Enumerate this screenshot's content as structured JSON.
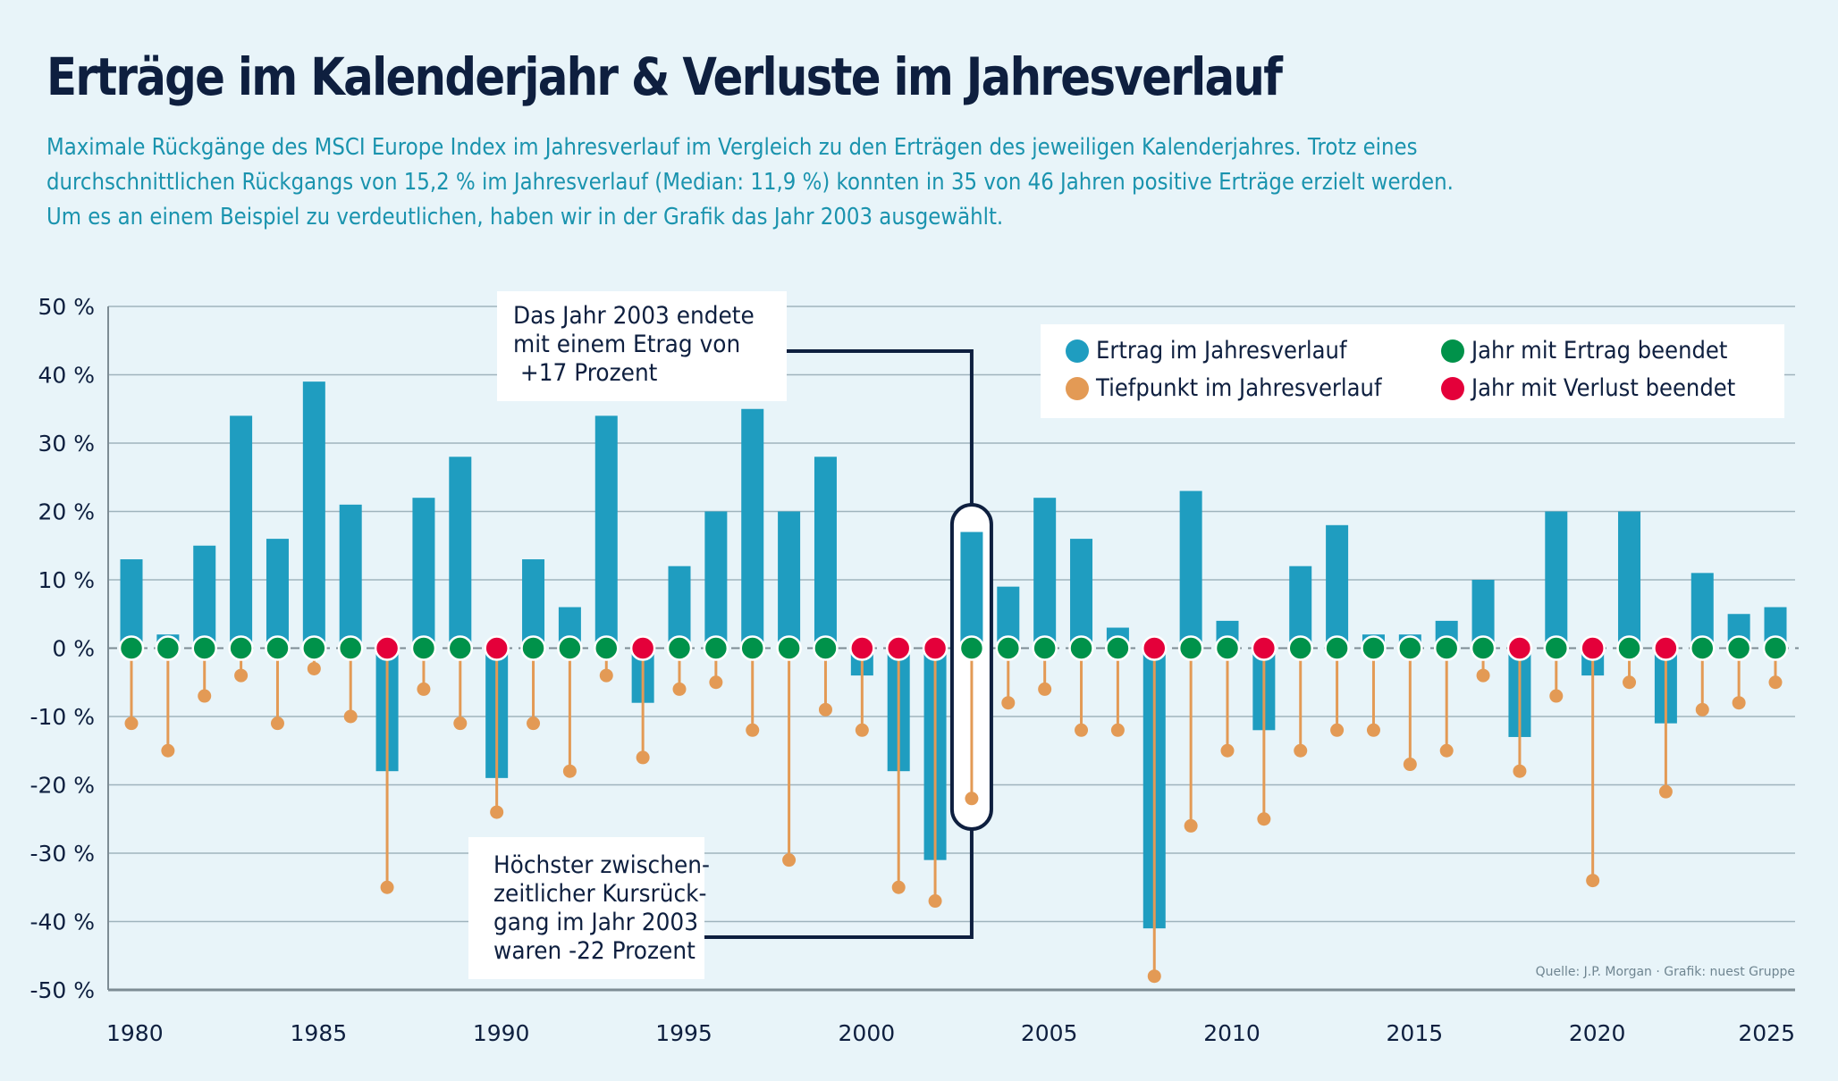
{
  "header": {
    "title": "Erträge im Kalenderjahr & Verluste im Jahresverlauf",
    "subtitle_lines": [
      "Maximale Rückgänge des MSCI Europe Index im Jahresverlauf im Vergleich zu den Erträgen des jeweiligen Kalenderjahres. Trotz eines",
      "durchschnittlichen Rückgangs von 15,2 % im Jahresverlauf (Median: 11,9 %) konnten in 35 von 46 Jahren positive Erträge erzielt werden.",
      "Um es an einem Beispiel zu verdeutlichen, haben wir in der Grafik das Jahr 2003 ausgewählt."
    ]
  },
  "annotations": {
    "top": [
      "Das Jahr 2003 endete",
      "mit einem Etrag von",
      " +17 Prozent"
    ],
    "bottom": [
      "Höchster zwischen-",
      "zeitlicher Kursrück-",
      "gang im Jahr 2003",
      "waren -22 Prozent"
    ],
    "highlight_year": 2003
  },
  "legend": {
    "items": [
      {
        "label": "Ertrag im Jahresverlauf",
        "color": "#1f9dc0",
        "key": "return"
      },
      {
        "label": "Tiefpunkt im Jahresverlauf",
        "color": "#e39a55",
        "key": "trough"
      },
      {
        "label": "Jahr mit Ertrag beendet",
        "color": "#00924a",
        "key": "positive"
      },
      {
        "label": "Jahr mit Verlust beendet",
        "color": "#e4003a",
        "key": "negative"
      }
    ]
  },
  "source": "Quelle: J.P. Morgan · Grafik: nuest Gruppe",
  "colors": {
    "bar": "#1f9dc0",
    "trough": "#e39a55",
    "positive": "#00924a",
    "negative": "#e4003a",
    "grid": "#9fb3bd",
    "axis": "#7d8c94",
    "highlight": "#0e1f3f"
  },
  "chart_data": {
    "type": "bar",
    "title": "Erträge im Kalenderjahr & Verluste im Jahresverlauf",
    "xlabel": "",
    "ylabel": "",
    "ylim": [
      -50,
      50
    ],
    "yticks": [
      50,
      40,
      30,
      20,
      10,
      0,
      -10,
      -20,
      -30,
      -40,
      -50
    ],
    "ytick_labels": [
      "50 %",
      "40 %",
      "30 %",
      "20 %",
      "10 %",
      "0 %",
      "-10 %",
      "-20 %",
      "-30 %",
      "-40 %",
      "-50 %"
    ],
    "xtick_labels": [
      "1980",
      "1985",
      "1990",
      "1995",
      "2000",
      "2005",
      "2010",
      "2015",
      "2020",
      "2025"
    ],
    "grid": true,
    "legend_position": "top-right",
    "x": [
      1980,
      1981,
      1982,
      1983,
      1984,
      1985,
      1986,
      1987,
      1988,
      1989,
      1990,
      1991,
      1992,
      1993,
      1994,
      1995,
      1996,
      1997,
      1998,
      1999,
      2000,
      2001,
      2002,
      2003,
      2004,
      2005,
      2006,
      2007,
      2008,
      2009,
      2010,
      2011,
      2012,
      2013,
      2014,
      2015,
      2016,
      2017,
      2018,
      2019,
      2020,
      2021,
      2022,
      2023,
      2024,
      2025
    ],
    "series": [
      {
        "name": "Ertrag im Jahresverlauf",
        "type": "bar",
        "values": [
          13,
          2,
          15,
          34,
          16,
          39,
          21,
          -18,
          22,
          28,
          -19,
          13,
          6,
          34,
          -8,
          12,
          20,
          35,
          20,
          28,
          -4,
          -18,
          -31,
          17,
          9,
          22,
          16,
          3,
          -41,
          23,
          4,
          -12,
          12,
          18,
          2,
          2,
          4,
          10,
          -13,
          20,
          -4,
          20,
          -11,
          11,
          5,
          6
        ]
      },
      {
        "name": "Tiefpunkt im Jahresverlauf",
        "type": "lollipop",
        "values": [
          -11,
          -15,
          -7,
          -4,
          -11,
          -3,
          -10,
          -35,
          -6,
          -11,
          -24,
          -11,
          -18,
          -4,
          -16,
          -6,
          -5,
          -12,
          -31,
          -9,
          -12,
          -35,
          -37,
          -22,
          -8,
          -6,
          -12,
          -12,
          -48,
          -26,
          -15,
          -25,
          -15,
          -12,
          -12,
          -17,
          -15,
          -4,
          -18,
          -7,
          -34,
          -5,
          -21,
          -9,
          -8,
          -5
        ]
      }
    ],
    "year_outcome_note": "marker at 0 %: green = Jahr mit Ertrag beendet, red = Jahr mit Verlust beendet (sign of annual return)"
  }
}
